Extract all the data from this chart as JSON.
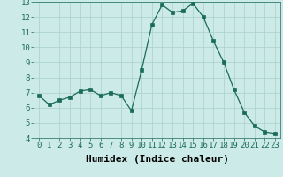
{
  "x": [
    0,
    1,
    2,
    3,
    4,
    5,
    6,
    7,
    8,
    9,
    10,
    11,
    12,
    13,
    14,
    15,
    16,
    17,
    18,
    19,
    20,
    21,
    22,
    23
  ],
  "y": [
    6.8,
    6.2,
    6.5,
    6.7,
    7.1,
    7.2,
    6.8,
    7.0,
    6.8,
    5.8,
    8.5,
    11.5,
    12.8,
    12.3,
    12.4,
    12.9,
    12.0,
    10.4,
    9.0,
    7.2,
    5.7,
    4.8,
    4.4,
    4.3
  ],
  "line_color": "#1a6b5a",
  "marker_color": "#1a6b5a",
  "bg_color": "#cceae7",
  "grid_color": "#aacfcb",
  "xlabel": "Humidex (Indice chaleur)",
  "xlabel_fontsize": 8,
  "tick_fontsize": 6.5,
  "ylim": [
    4,
    13
  ],
  "xlim_min": -0.5,
  "xlim_max": 23.5,
  "yticks": [
    4,
    5,
    6,
    7,
    8,
    9,
    10,
    11,
    12,
    13
  ],
  "xticks": [
    0,
    1,
    2,
    3,
    4,
    5,
    6,
    7,
    8,
    9,
    10,
    11,
    12,
    13,
    14,
    15,
    16,
    17,
    18,
    19,
    20,
    21,
    22,
    23
  ]
}
